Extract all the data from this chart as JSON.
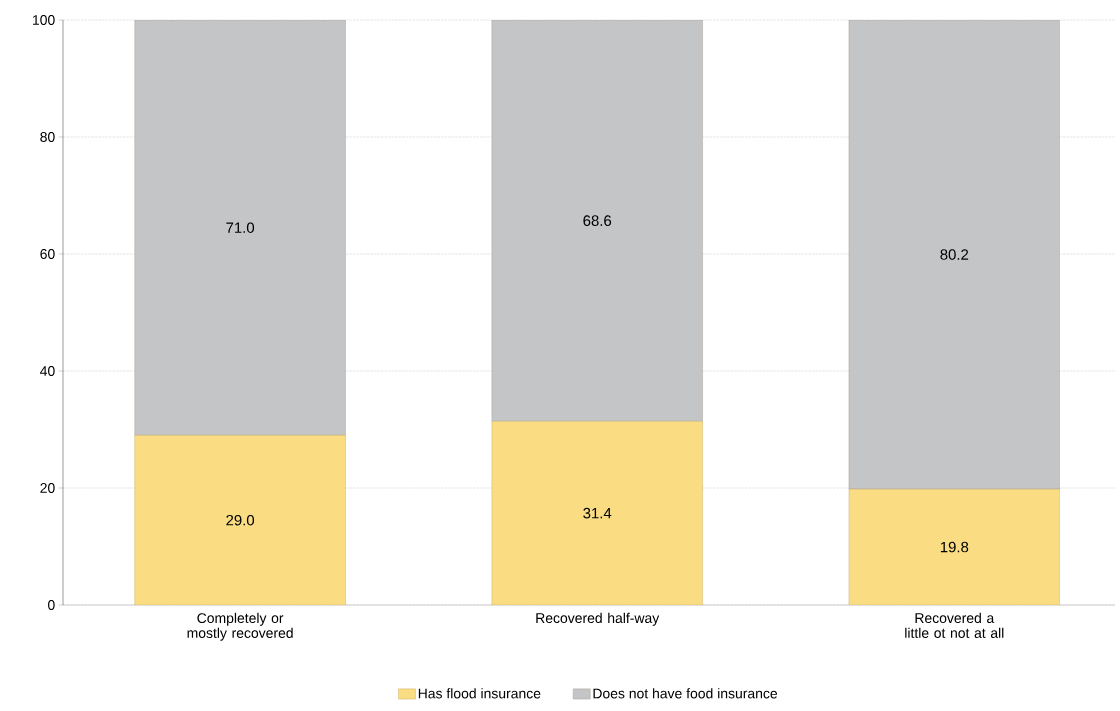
{
  "chart_data": {
    "type": "bar",
    "stacked": true,
    "categories": [
      "Completely or mostly recovered",
      "Recovered half-way",
      "Recovered a little ot not at all"
    ],
    "series": [
      {
        "name": "Has flood insurance",
        "color": "#fadd82",
        "values": [
          29.0,
          31.4,
          19.8
        ],
        "value_labels": [
          "29.0",
          "31.4",
          "19.8"
        ]
      },
      {
        "name": "Does not have food insurance",
        "color": "#c4c5c7",
        "values": [
          71.0,
          68.6,
          80.2
        ],
        "value_labels": [
          "71.0",
          "68.6",
          "80.2"
        ]
      }
    ],
    "ylim": [
      0,
      100
    ],
    "yticks": [
      0,
      20,
      40,
      60,
      80,
      100
    ],
    "grid": "y",
    "legend": "bottom"
  }
}
